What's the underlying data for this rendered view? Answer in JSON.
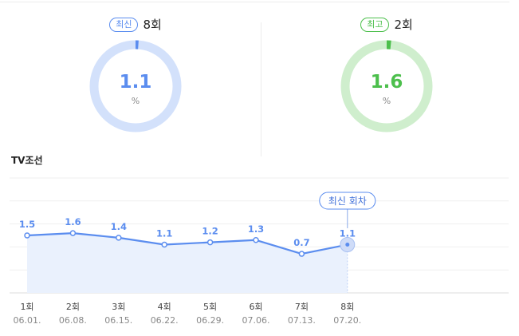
{
  "summary": {
    "latest": {
      "tag": "최신",
      "round": "8회",
      "value": "1.1",
      "unit": "%",
      "percent": 1.1,
      "color": "#5b8def",
      "track_color": "#d3e1fb"
    },
    "best": {
      "tag": "최고",
      "round": "2회",
      "value": "1.6",
      "unit": "%",
      "percent": 1.6,
      "color": "#4cbf4c",
      "track_color": "#cfeecd"
    }
  },
  "channel": "TV조선",
  "chart_data": {
    "type": "line",
    "title": "TV조선",
    "categories": [
      "1회",
      "2회",
      "3회",
      "4회",
      "5회",
      "6회",
      "7회",
      "8회"
    ],
    "dates": [
      "06.01.",
      "06.08.",
      "06.15.",
      "06.22.",
      "06.29.",
      "07.06.",
      "07.13.",
      "07.20."
    ],
    "values": [
      1.5,
      1.6,
      1.4,
      1.1,
      1.2,
      1.3,
      0.7,
      1.1
    ],
    "value_labels": [
      "1.5",
      "1.6",
      "1.4",
      "1.1",
      "1.2",
      "1.3",
      "0.7",
      "1.1"
    ],
    "ylim": [
      -1,
      4
    ],
    "grid": true,
    "area_fill": true,
    "line_color": "#5b8def",
    "fill_color": "#eaf1fd",
    "callout": {
      "label": "최신 회차",
      "index": 7
    }
  }
}
